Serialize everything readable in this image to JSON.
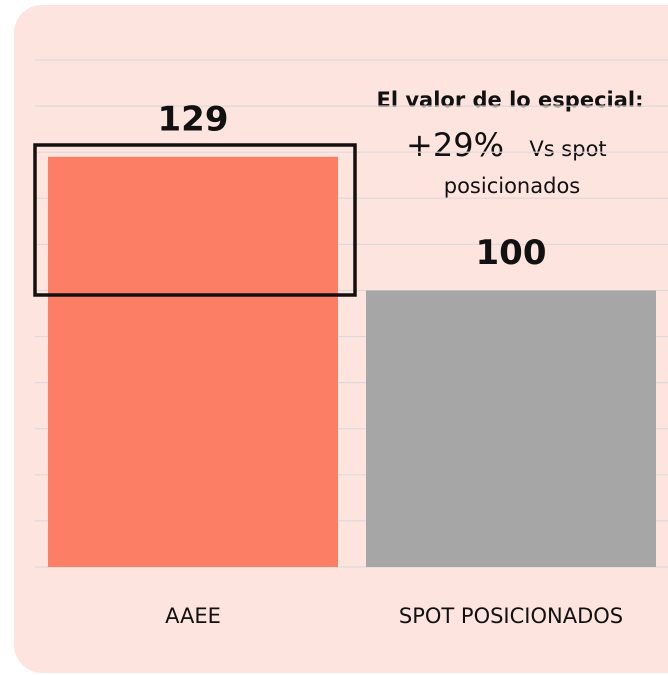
{
  "chart_data": {
    "type": "bar",
    "categories": [
      "AAEE",
      "SPOT POSICIONADOS"
    ],
    "values": [
      129,
      100
    ],
    "colors": [
      "#fc7e64",
      "#a6a6a6"
    ],
    "ylim": [
      40,
      150
    ],
    "yticks": [
      40,
      50,
      60,
      70,
      80,
      90,
      100,
      110,
      120,
      130,
      140,
      150
    ],
    "grid": true,
    "annotation": {
      "title": "El valor de lo especial:",
      "highlight": "+29%",
      "line1": "Vs spot",
      "line2": "posicionados"
    }
  }
}
